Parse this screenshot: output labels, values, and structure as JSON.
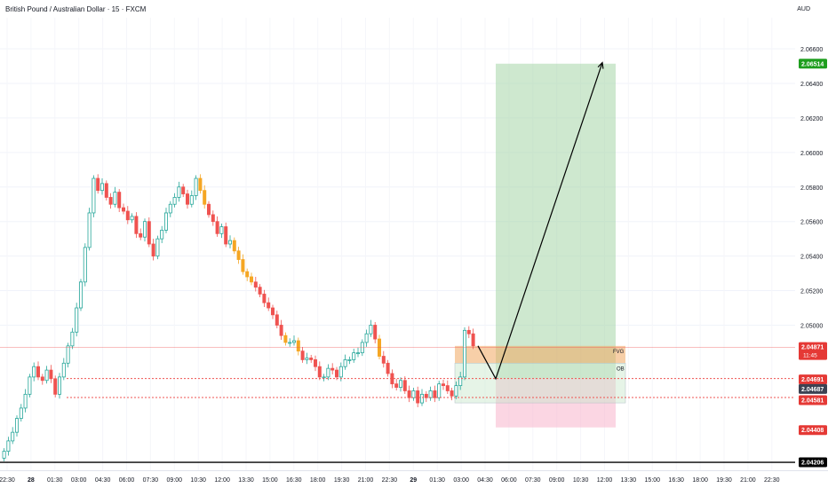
{
  "header": {
    "title": "British Pound / Australian Dollar · 15 · FXCM",
    "currency": "AUD"
  },
  "colors": {
    "up": "#26a69a",
    "down": "#ef5350",
    "highlight": "#f5a623",
    "profit_zone": "#a5d6a7",
    "loss_zone": "#f8bbd0",
    "fvg": "#f0a860",
    "price_line": "#ef5350",
    "green_tag": "#1e9e1e",
    "red_tag": "#e53935",
    "dark_tag": "#3c4252"
  },
  "price_tags": [
    {
      "value": "2.06514",
      "color": "green"
    },
    {
      "value": "2.04871",
      "sub": "11:45",
      "color": "red"
    },
    {
      "value": "2.04691",
      "color": "red"
    },
    {
      "value": "2.04687",
      "color": "dark"
    },
    {
      "value": "2.04581",
      "color": "red"
    },
    {
      "value": "2.04408",
      "color": "red"
    },
    {
      "value": "2.04206",
      "color": "black"
    }
  ],
  "zone_labels": {
    "fvg": "FVG",
    "ob": "OB"
  },
  "chart_data": {
    "type": "candlestick",
    "title": "British Pound / Australian Dollar · 15 · FXCM",
    "ylabel": "AUD",
    "ylim": [
      2.0416,
      2.0678
    ],
    "y_ticks": [
      "2.06600",
      "2.06400",
      "2.06200",
      "2.06000",
      "2.05800",
      "2.05600",
      "2.05400",
      "2.05200",
      "2.05000"
    ],
    "x_ticks": [
      "22:30",
      "28",
      "01:30",
      "03:00",
      "04:30",
      "06:00",
      "07:30",
      "09:00",
      "10:30",
      "12:00",
      "13:30",
      "15:00",
      "16:30",
      "18:00",
      "19:30",
      "21:00",
      "22:30",
      "29",
      "01:30",
      "03:00",
      "04:30",
      "06:00",
      "07:30",
      "09:00",
      "10:30",
      "12:00",
      "13:30",
      "15:00",
      "16:30",
      "18:00",
      "19:30",
      "21:00",
      "22:30"
    ],
    "candle_closes": [
      2.0427,
      2.0433,
      2.0438,
      2.0446,
      2.0452,
      2.046,
      2.047,
      2.0476,
      2.047,
      2.0468,
      2.0474,
      2.0469,
      2.046,
      2.047,
      2.0478,
      2.0488,
      2.0496,
      2.051,
      2.0525,
      2.0545,
      2.0565,
      2.0585,
      2.0578,
      2.0582,
      2.0574,
      2.057,
      2.0577,
      2.0568,
      2.0566,
      2.0561,
      2.0563,
      2.0553,
      2.0551,
      2.056,
      2.0547,
      2.054,
      2.055,
      2.0555,
      2.0565,
      2.057,
      2.0574,
      2.058,
      2.0576,
      2.057,
      2.0575,
      2.0585,
      2.0578,
      2.057,
      2.0564,
      2.056,
      2.0553,
      2.0557,
      2.0547,
      2.0549,
      2.0543,
      2.0538,
      2.0531,
      2.0528,
      2.0525,
      2.0522,
      2.0518,
      2.0513,
      2.051,
      2.0506,
      2.05,
      2.0494,
      2.049,
      2.049,
      2.0491,
      2.0485,
      2.048,
      2.0481,
      2.048,
      2.0476,
      2.047,
      2.047,
      2.0475,
      2.0474,
      2.047,
      2.0476,
      2.048,
      2.048,
      2.0484,
      2.0484,
      2.049,
      2.0495,
      2.05,
      2.0492,
      2.0482,
      2.0478,
      2.0472,
      2.0466,
      2.0464,
      2.0468,
      2.0462,
      2.0458,
      2.0462,
      2.0455,
      2.046,
      2.0458,
      2.0462,
      2.0458,
      2.0466,
      2.0465,
      2.0462,
      2.0459,
      2.0465,
      2.047,
      2.0497,
      2.0495,
      2.0488
    ],
    "arrow": {
      "from_price": 2.0469,
      "to_price": 2.0652
    },
    "target_price": 2.06514,
    "stop_price": 2.04408,
    "entry_price": 2.04691,
    "fvg": {
      "top": 2.0488,
      "bottom": 2.0478
    },
    "ob": {
      "top": 2.0478,
      "bottom": 2.0455
    },
    "h_lines": [
      2.04871,
      2.04691,
      2.04581,
      2.04206
    ],
    "grid": true
  }
}
